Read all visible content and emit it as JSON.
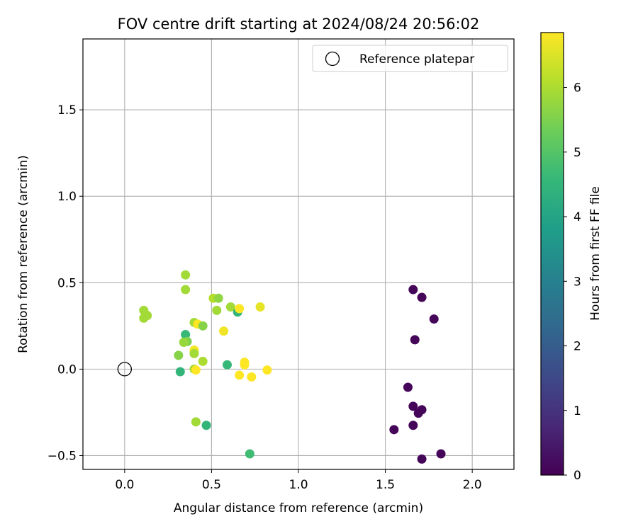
{
  "chart_data": {
    "type": "scatter",
    "title": "FOV centre drift starting at 2024/08/24 20:56:02",
    "xlabel": "Angular distance from reference (arcmin)",
    "ylabel": "Rotation from reference (arcmin)",
    "xlim": [
      -0.24,
      2.24
    ],
    "ylim": [
      -0.58,
      1.91
    ],
    "xticks": [
      0.0,
      0.5,
      1.0,
      1.5,
      2.0
    ],
    "xtick_labels": [
      "0.0",
      "0.5",
      "1.0",
      "1.5",
      "2.0"
    ],
    "yticks": [
      -0.5,
      0.0,
      0.5,
      1.0,
      1.5
    ],
    "ytick_labels": [
      "−0.5",
      "0.0",
      "0.5",
      "1.0",
      "1.5"
    ],
    "grid": true,
    "legend": {
      "placement": "top-right",
      "entries": [
        {
          "label": "Reference platepar",
          "marker": "open-circle",
          "x": 0,
          "y": 0
        }
      ]
    },
    "colorbar": {
      "label": "Hours from first FF file",
      "colormap": "viridis",
      "range": [
        0,
        6.85
      ],
      "ticks": [
        0,
        1,
        2,
        3,
        4,
        5,
        6
      ],
      "tick_labels": [
        "0",
        "1",
        "2",
        "3",
        "4",
        "5",
        "6"
      ]
    },
    "points": [
      {
        "x": 1.66,
        "y": 0.46,
        "c": 0.1
      },
      {
        "x": 1.71,
        "y": 0.415,
        "c": 0.1
      },
      {
        "x": 1.78,
        "y": 0.29,
        "c": 0.1
      },
      {
        "x": 1.67,
        "y": 0.17,
        "c": 0.1
      },
      {
        "x": 1.63,
        "y": -0.105,
        "c": 0.1
      },
      {
        "x": 1.66,
        "y": -0.215,
        "c": 0.1
      },
      {
        "x": 1.71,
        "y": -0.235,
        "c": 0.1
      },
      {
        "x": 1.69,
        "y": -0.255,
        "c": 0.1
      },
      {
        "x": 1.55,
        "y": -0.35,
        "c": 0.1
      },
      {
        "x": 1.66,
        "y": -0.325,
        "c": 0.1
      },
      {
        "x": 1.82,
        "y": -0.49,
        "c": 0.1
      },
      {
        "x": 1.71,
        "y": -0.52,
        "c": 0.1
      },
      {
        "x": 0.35,
        "y": 0.545,
        "c": 5.9
      },
      {
        "x": 0.35,
        "y": 0.46,
        "c": 5.9
      },
      {
        "x": 0.11,
        "y": 0.34,
        "c": 5.9
      },
      {
        "x": 0.13,
        "y": 0.31,
        "c": 5.9
      },
      {
        "x": 0.11,
        "y": 0.295,
        "c": 5.9
      },
      {
        "x": 0.51,
        "y": 0.41,
        "c": 6.1
      },
      {
        "x": 0.54,
        "y": 0.41,
        "c": 5.7
      },
      {
        "x": 0.61,
        "y": 0.36,
        "c": 5.9
      },
      {
        "x": 0.53,
        "y": 0.34,
        "c": 5.9
      },
      {
        "x": 0.65,
        "y": 0.33,
        "c": 4.5
      },
      {
        "x": 0.66,
        "y": 0.35,
        "c": 6.85
      },
      {
        "x": 0.78,
        "y": 0.36,
        "c": 6.6
      },
      {
        "x": 0.4,
        "y": 0.27,
        "c": 5.9
      },
      {
        "x": 0.42,
        "y": 0.26,
        "c": 6.85
      },
      {
        "x": 0.45,
        "y": 0.25,
        "c": 5.6
      },
      {
        "x": 0.57,
        "y": 0.22,
        "c": 6.7
      },
      {
        "x": 0.35,
        "y": 0.2,
        "c": 4.6
      },
      {
        "x": 0.36,
        "y": 0.16,
        "c": 5.5
      },
      {
        "x": 0.34,
        "y": 0.155,
        "c": 5.8
      },
      {
        "x": 0.4,
        "y": 0.11,
        "c": 6.75
      },
      {
        "x": 0.4,
        "y": 0.09,
        "c": 5.9
      },
      {
        "x": 0.31,
        "y": 0.08,
        "c": 5.6
      },
      {
        "x": 0.45,
        "y": 0.045,
        "c": 6.0
      },
      {
        "x": 0.59,
        "y": 0.025,
        "c": 4.6
      },
      {
        "x": 0.69,
        "y": 0.04,
        "c": 6.85
      },
      {
        "x": 0.69,
        "y": 0.025,
        "c": 6.85
      },
      {
        "x": 0.4,
        "y": 0.0,
        "c": 5.9
      },
      {
        "x": 0.41,
        "y": -0.005,
        "c": 6.85
      },
      {
        "x": 0.82,
        "y": -0.005,
        "c": 6.85
      },
      {
        "x": 0.32,
        "y": -0.015,
        "c": 4.5
      },
      {
        "x": 0.66,
        "y": -0.035,
        "c": 6.85
      },
      {
        "x": 0.73,
        "y": -0.045,
        "c": 6.85
      },
      {
        "x": 0.41,
        "y": -0.305,
        "c": 5.9
      },
      {
        "x": 0.47,
        "y": -0.325,
        "c": 4.5
      },
      {
        "x": 0.72,
        "y": -0.49,
        "c": 4.7
      }
    ]
  }
}
